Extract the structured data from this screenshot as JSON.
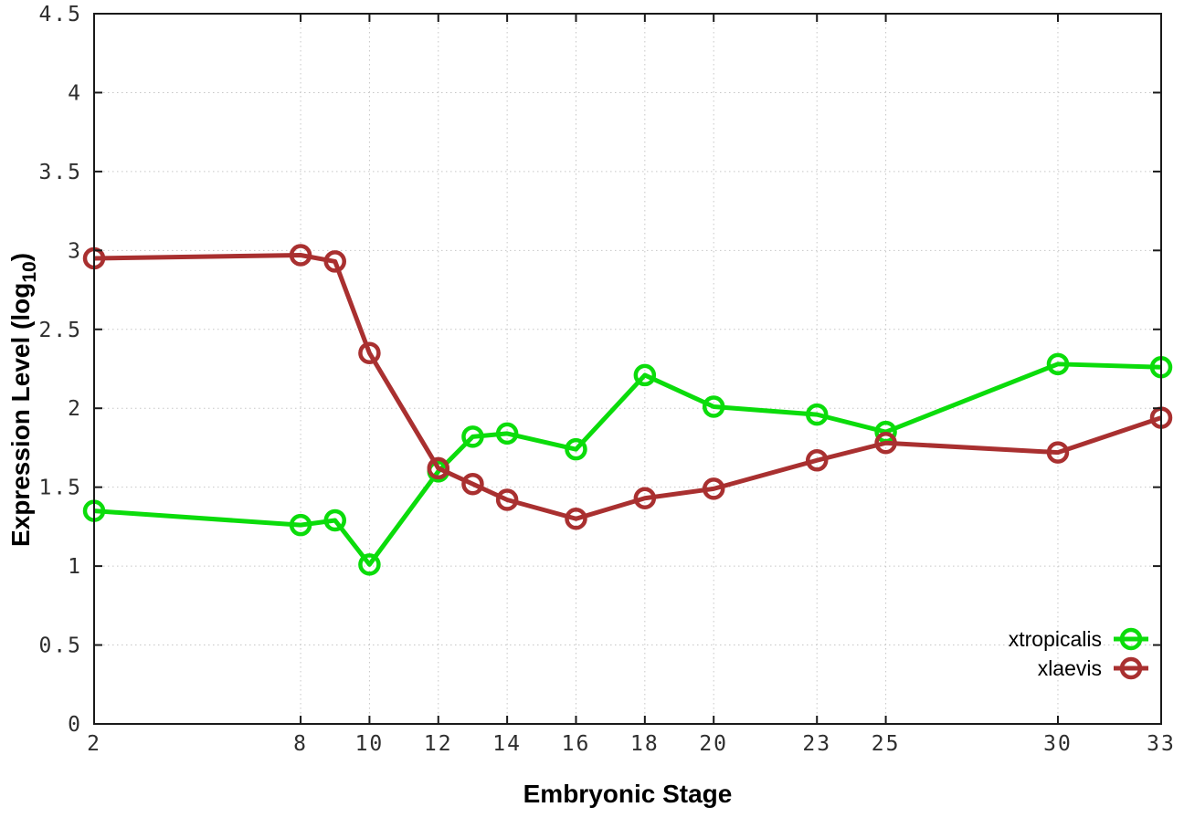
{
  "chart_data": {
    "type": "line",
    "title": "",
    "xlabel": "Embryonic Stage",
    "ylabel": "Expression Level (log10)",
    "ylabel_parts": {
      "pre": "Expression Level (log",
      "sub": "10",
      "post": ")"
    },
    "xlim": [
      2,
      33
    ],
    "ylim": [
      0,
      4.5
    ],
    "grid": true,
    "grid_style": "dotted",
    "tick_style": "inward-all-sides",
    "marker_style": "open-circle",
    "legend_position": "bottom-right-inside",
    "xticks": [
      2,
      8,
      10,
      12,
      14,
      16,
      18,
      20,
      23,
      25,
      30,
      33
    ],
    "xtick_labels": [
      "2",
      "8",
      "10",
      "12",
      "14",
      "16",
      "18",
      "20",
      "23",
      "25",
      "30",
      "33"
    ],
    "yticks": [
      0,
      0.5,
      1,
      1.5,
      2,
      2.5,
      3,
      3.5,
      4,
      4.5
    ],
    "ytick_labels": [
      "0",
      "0.5",
      "1",
      "1.5",
      "2",
      "2.5",
      "3",
      "3.5",
      "4",
      "4.5"
    ],
    "x": [
      2,
      8,
      9,
      10,
      12,
      13,
      14,
      16,
      18,
      20,
      23,
      25,
      30,
      33
    ],
    "series": [
      {
        "name": "xtropicalis",
        "color": "#0bdc0b",
        "values": [
          1.35,
          1.26,
          1.29,
          1.01,
          1.6,
          1.82,
          1.84,
          1.74,
          2.21,
          2.01,
          1.96,
          1.85,
          2.28,
          2.26
        ]
      },
      {
        "name": "xlaevis",
        "color": "#a93030",
        "values": [
          2.95,
          2.97,
          2.93,
          2.35,
          1.62,
          1.52,
          1.42,
          1.3,
          1.43,
          1.49,
          1.67,
          1.78,
          1.72,
          1.94
        ]
      }
    ]
  },
  "colors": {
    "background": "#ffffff",
    "grid": "#c6c6c6",
    "axis": "#1a1a1a",
    "tick_text": "#2e2e2e"
  }
}
